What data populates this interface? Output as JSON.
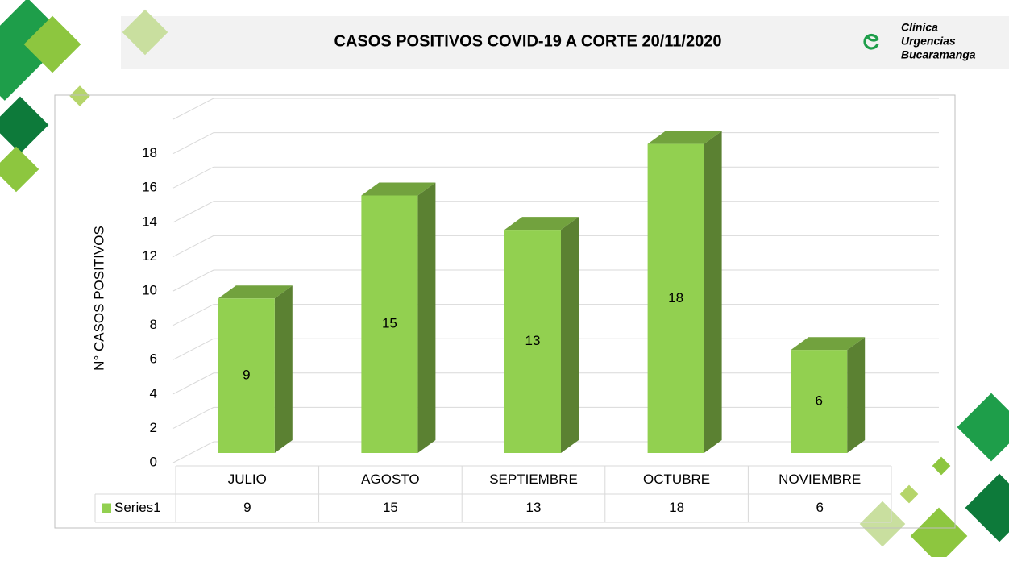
{
  "header": {
    "logo_lines": [
      "Clínica",
      "Urgencias",
      "Bucaramanga"
    ]
  },
  "chart_data": {
    "type": "bar",
    "title": "CASOS POSITIVOS COVID-19 A CORTE 20/11/2020",
    "y_label": "N° CASOS POSITIVOS",
    "categories": [
      "JULIO",
      "AGOSTO",
      "SEPTIEMBRE",
      "OCTUBRE",
      "NOVIEMBRE"
    ],
    "series": [
      {
        "name": "Series1",
        "color": "#92d050",
        "values": [
          9,
          15,
          13,
          18,
          6
        ]
      }
    ],
    "ylim": [
      0,
      20
    ],
    "yticks": [
      0,
      2,
      4,
      6,
      8,
      10,
      12,
      14,
      16,
      18
    ],
    "grid": true,
    "data_table": true
  }
}
